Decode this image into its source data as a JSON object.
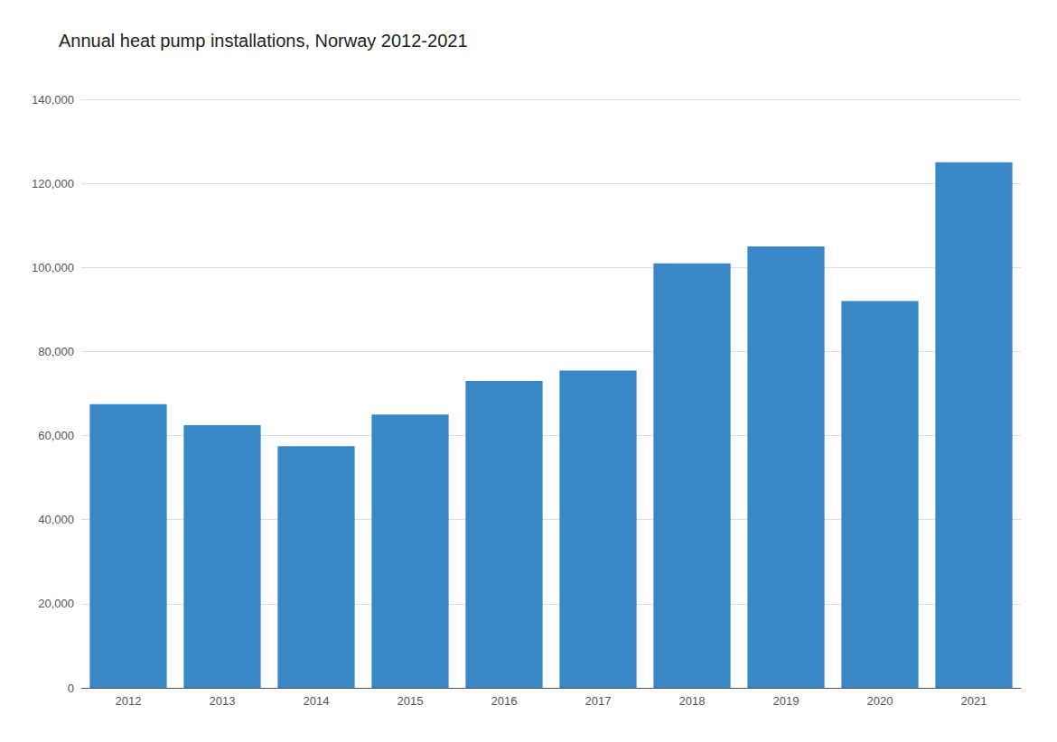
{
  "chart_data": {
    "type": "bar",
    "title": "Annual heat pump installations, Norway 2012-2021",
    "categories": [
      "2012",
      "2013",
      "2014",
      "2015",
      "2016",
      "2017",
      "2018",
      "2019",
      "2020",
      "2021"
    ],
    "values": [
      67500,
      62500,
      57500,
      65000,
      73000,
      75500,
      101000,
      105000,
      92000,
      125000
    ],
    "color": "#3a87c8",
    "ylim": [
      0,
      140000
    ],
    "yticks": [
      0,
      {
        "value": 20000,
        "label": "20,000"
      },
      {
        "value": 40000,
        "label": "40,000"
      },
      {
        "value": 60000,
        "label": "60,000"
      },
      {
        "value": 80000,
        "label": "80,000"
      },
      {
        "value": 100000,
        "label": "100,000"
      },
      {
        "value": 120000,
        "label": "120,000"
      },
      {
        "value": 140000,
        "label": "140,000"
      }
    ],
    "grid": true
  }
}
